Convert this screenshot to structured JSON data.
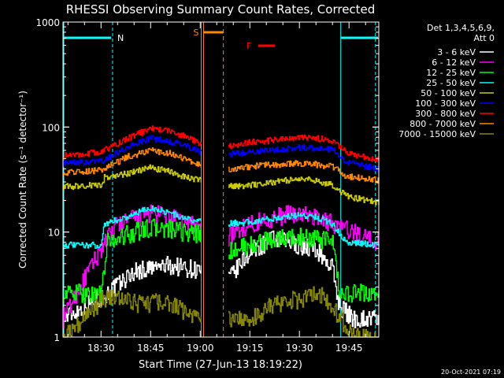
{
  "chart_data": {
    "type": "line",
    "title": "RHESSI Observing Summary Count Rates, Corrected",
    "xlabel": "Start Time (27-Jun-13 18:19:22)",
    "ylabel": "Corrected Count Rate (s⁻¹ detector⁻¹)",
    "yscale": "log",
    "ylim": [
      1,
      1000
    ],
    "xlim_minutes": [
      18.5,
      114
    ],
    "y_ticks": [
      {
        "v": 1,
        "label": "1"
      },
      {
        "v": 10,
        "label": "10"
      },
      {
        "v": 100,
        "label": "100"
      },
      {
        "v": 1000,
        "label": "1000"
      }
    ],
    "x_ticks": [
      {
        "m": 30,
        "label": "18:30"
      },
      {
        "m": 45,
        "label": "18:45"
      },
      {
        "m": 60,
        "label": "19:00"
      },
      {
        "m": 75,
        "label": "19:15"
      },
      {
        "m": 90,
        "label": "19:30"
      },
      {
        "m": 105,
        "label": "19:45"
      }
    ],
    "legend_header": [
      "Det 1,3,4,5,6,9,",
      "Att 0"
    ],
    "gap_minutes": [
      60.3,
      68.5
    ],
    "series": [
      {
        "name": "3 - 6 keV",
        "color": "#ffffff",
        "points": [
          [
            18.5,
            1.5
          ],
          [
            32,
            2.6
          ],
          [
            40,
            4.2
          ],
          [
            50,
            4.8
          ],
          [
            55,
            4.6
          ],
          [
            60,
            4.3
          ],
          [
            68.5,
            3.5
          ],
          [
            75,
            6.5
          ],
          [
            82,
            8.5
          ],
          [
            90,
            7.5
          ],
          [
            95,
            6.8
          ],
          [
            100,
            4.5
          ],
          [
            102,
            2
          ],
          [
            106,
            1.5
          ],
          [
            114,
            1.5
          ]
        ]
      },
      {
        "name": "6 - 12 keV",
        "color": "#ff00ff",
        "points": [
          [
            18.5,
            1.5
          ],
          [
            30,
            7
          ],
          [
            35,
            12
          ],
          [
            45,
            15
          ],
          [
            50,
            14
          ],
          [
            55,
            12.5
          ],
          [
            60,
            11.5
          ],
          [
            68.5,
            9
          ],
          [
            75,
            12
          ],
          [
            82,
            13.5
          ],
          [
            88,
            15
          ],
          [
            95,
            14
          ],
          [
            100,
            12
          ],
          [
            106,
            10
          ],
          [
            114,
            8
          ]
        ]
      },
      {
        "name": "12 - 25 keV",
        "color": "#00ff00",
        "points": [
          [
            18.5,
            2.6
          ],
          [
            30,
            2.6
          ],
          [
            32,
            8
          ],
          [
            38,
            9.5
          ],
          [
            45,
            11
          ],
          [
            50,
            10.5
          ],
          [
            55,
            10
          ],
          [
            60,
            9.5
          ],
          [
            68.5,
            6.5
          ],
          [
            75,
            7.5
          ],
          [
            82,
            8.5
          ],
          [
            90,
            9
          ],
          [
            95,
            8.5
          ],
          [
            100,
            8
          ],
          [
            102,
            2.6
          ],
          [
            114,
            2.6
          ]
        ]
      },
      {
        "name": "25 - 50 keV",
        "color": "#00ffff",
        "points": [
          [
            18.5,
            7.5
          ],
          [
            30,
            7.5
          ],
          [
            31,
            12
          ],
          [
            38,
            14
          ],
          [
            45,
            17
          ],
          [
            50,
            15.5
          ],
          [
            55,
            13.5
          ],
          [
            60,
            12.5
          ],
          [
            68.5,
            12
          ],
          [
            75,
            12.5
          ],
          [
            82,
            13.5
          ],
          [
            90,
            14.5
          ],
          [
            95,
            14
          ],
          [
            100,
            12
          ],
          [
            104,
            8
          ],
          [
            114,
            7.5
          ]
        ]
      },
      {
        "name": "50 - 100 keV",
        "color": "#cccc00",
        "points": [
          [
            18.5,
            27
          ],
          [
            30,
            28
          ],
          [
            31,
            33
          ],
          [
            38,
            36
          ],
          [
            45,
            41
          ],
          [
            50,
            38
          ],
          [
            55,
            34
          ],
          [
            60,
            31
          ],
          [
            68.5,
            27
          ],
          [
            75,
            28
          ],
          [
            82,
            30
          ],
          [
            90,
            32
          ],
          [
            95,
            31
          ],
          [
            100,
            28
          ],
          [
            104,
            22
          ],
          [
            114,
            19
          ]
        ]
      },
      {
        "name": "100 - 300 keV",
        "color": "#0000ff",
        "points": [
          [
            18.5,
            45
          ],
          [
            30,
            47
          ],
          [
            38,
            64
          ],
          [
            45,
            78
          ],
          [
            50,
            74
          ],
          [
            55,
            67
          ],
          [
            60,
            58
          ],
          [
            68.5,
            55
          ],
          [
            75,
            58
          ],
          [
            82,
            61
          ],
          [
            90,
            64
          ],
          [
            95,
            63
          ],
          [
            100,
            61
          ],
          [
            104,
            46
          ],
          [
            114,
            40
          ]
        ]
      },
      {
        "name": "300 - 800 keV",
        "color": "#ff0000",
        "points": [
          [
            18.5,
            53
          ],
          [
            30,
            58
          ],
          [
            38,
            78
          ],
          [
            45,
            97
          ],
          [
            50,
            93
          ],
          [
            55,
            82
          ],
          [
            60,
            70
          ],
          [
            68.5,
            66
          ],
          [
            75,
            72
          ],
          [
            82,
            75
          ],
          [
            90,
            79
          ],
          [
            95,
            78
          ],
          [
            100,
            74
          ],
          [
            104,
            58
          ],
          [
            114,
            48
          ]
        ]
      },
      {
        "name": "800 - 7000 keV",
        "color": "#ff8800",
        "points": [
          [
            18.5,
            37
          ],
          [
            30,
            39
          ],
          [
            38,
            52
          ],
          [
            45,
            60
          ],
          [
            50,
            57
          ],
          [
            55,
            50
          ],
          [
            60,
            44
          ],
          [
            68.5,
            40
          ],
          [
            75,
            42
          ],
          [
            82,
            44
          ],
          [
            90,
            45
          ],
          [
            95,
            44
          ],
          [
            100,
            42
          ],
          [
            104,
            34
          ],
          [
            114,
            31
          ]
        ]
      },
      {
        "name": "7000 - 15000 keV",
        "color": "#888800",
        "points": [
          [
            18.5,
            1
          ],
          [
            32,
            2.5
          ],
          [
            40,
            2.1
          ],
          [
            50,
            2.1
          ],
          [
            60,
            1.5
          ],
          [
            68.5,
            1.5
          ],
          [
            75,
            1.5
          ],
          [
            82,
            2
          ],
          [
            90,
            2.3
          ],
          [
            96,
            2.6
          ],
          [
            102,
            1.6
          ],
          [
            106,
            1
          ],
          [
            114,
            1
          ]
        ]
      }
    ],
    "annotations": [
      {
        "label": "N",
        "color": "#00ffff",
        "minutes": [
          33.5,
          102.5
        ]
      },
      {
        "label": "S",
        "color": "#ff8800",
        "minutes": [
          61,
          67
        ]
      },
      {
        "label": "F",
        "color": "#ff0000"
      }
    ]
  },
  "footer_timestamp": "20-Oct-2021 07:19"
}
